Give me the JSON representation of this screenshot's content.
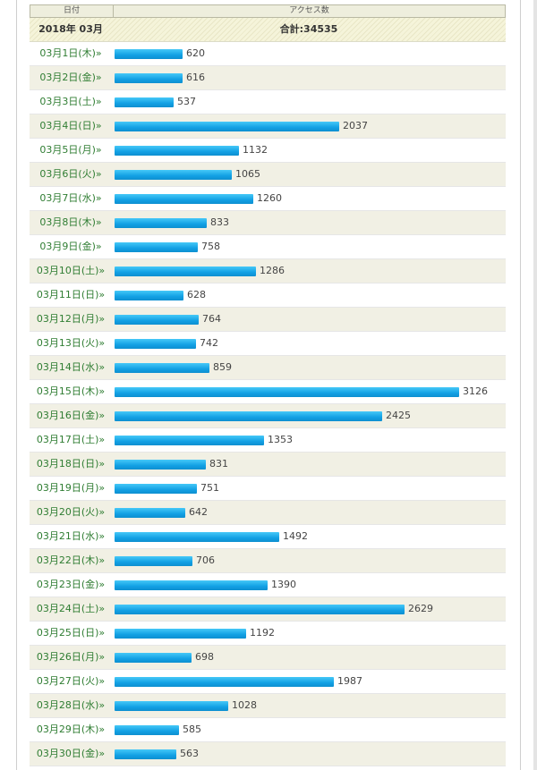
{
  "header": {
    "col_date": "日付",
    "col_access": "アクセス数"
  },
  "summary": {
    "month": "2018年 03月",
    "total": "合計:34535"
  },
  "chart_data": {
    "type": "bar",
    "categories": [
      "03月1日(木)»",
      "03月2日(金)»",
      "03月3日(土)»",
      "03月4日(日)»",
      "03月5日(月)»",
      "03月6日(火)»",
      "03月7日(水)»",
      "03月8日(木)»",
      "03月9日(金)»",
      "03月10日(土)»",
      "03月11日(日)»",
      "03月12日(月)»",
      "03月13日(火)»",
      "03月14日(水)»",
      "03月15日(木)»",
      "03月16日(金)»",
      "03月17日(土)»",
      "03月18日(日)»",
      "03月19日(月)»",
      "03月20日(火)»",
      "03月21日(水)»",
      "03月22日(木)»",
      "03月23日(金)»",
      "03月24日(土)»",
      "03月25日(日)»",
      "03月26日(月)»",
      "03月27日(火)»",
      "03月28日(水)»",
      "03月29日(木)»",
      "03月30日(金)»"
    ],
    "values": [
      620,
      616,
      537,
      2037,
      1132,
      1065,
      1260,
      833,
      758,
      1286,
      628,
      764,
      742,
      859,
      3126,
      2425,
      1353,
      831,
      751,
      642,
      1492,
      706,
      1390,
      2629,
      1192,
      698,
      1987,
      1028,
      585,
      563
    ],
    "bar_color": "#12a0e4",
    "date_color": "#2f7d32"
  }
}
